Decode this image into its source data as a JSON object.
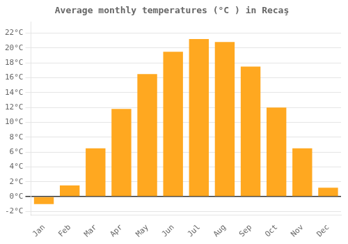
{
  "chart_data": {
    "type": "bar",
    "title": "Average monthly temperatures (°C ) in Recaş",
    "categories": [
      "Jan",
      "Feb",
      "Mar",
      "Apr",
      "May",
      "Jun",
      "Jul",
      "Aug",
      "Sep",
      "Oct",
      "Nov",
      "Dec"
    ],
    "values": [
      -1.0,
      1.5,
      6.5,
      11.8,
      16.5,
      19.5,
      21.2,
      20.8,
      17.5,
      12.0,
      6.5,
      1.2
    ],
    "color": "#FFA820",
    "ylim": [
      -2.5,
      23.5
    ],
    "yticks": [
      {
        "value": -2,
        "label": "-2°C"
      },
      {
        "value": 0,
        "label": "0°C"
      },
      {
        "value": 2,
        "label": "2°C"
      },
      {
        "value": 4,
        "label": "4°C"
      },
      {
        "value": 6,
        "label": "6°C"
      },
      {
        "value": 8,
        "label": "8°C"
      },
      {
        "value": 10,
        "label": "10°C"
      },
      {
        "value": 12,
        "label": "12°C"
      },
      {
        "value": 14,
        "label": "14°C"
      },
      {
        "value": 16,
        "label": "16°C"
      },
      {
        "value": 18,
        "label": "18°C"
      },
      {
        "value": 20,
        "label": "20°C"
      },
      {
        "value": 22,
        "label": "22°C"
      }
    ],
    "grid": true
  }
}
